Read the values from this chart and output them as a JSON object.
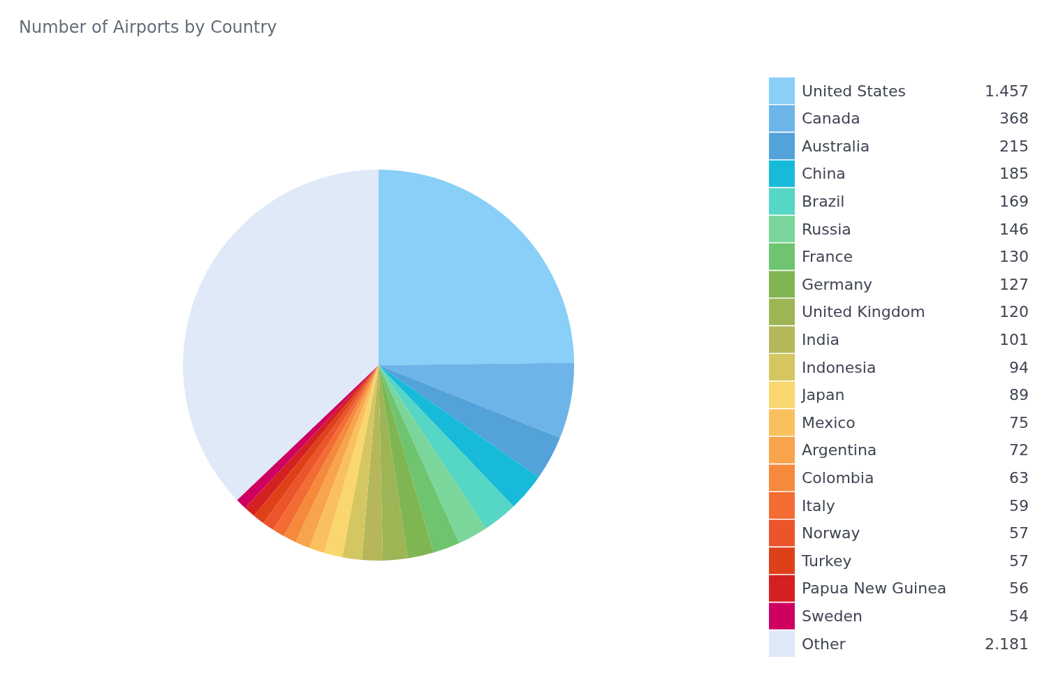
{
  "chart_data": {
    "type": "pie",
    "title": "Number of Airports by Country",
    "categories": [
      "United States",
      "Canada",
      "Australia",
      "China",
      "Brazil",
      "Russia",
      "France",
      "Germany",
      "United Kingdom",
      "India",
      "Indonesia",
      "Japan",
      "Mexico",
      "Argentina",
      "Colombia",
      "Italy",
      "Norway",
      "Turkey",
      "Papua New Guinea",
      "Sweden",
      "Other"
    ],
    "values": [
      1457,
      368,
      215,
      185,
      169,
      146,
      130,
      127,
      120,
      101,
      94,
      89,
      75,
      72,
      63,
      59,
      57,
      57,
      56,
      54,
      2181
    ],
    "value_labels": [
      "1.457",
      "368",
      "215",
      "185",
      "169",
      "146",
      "130",
      "127",
      "120",
      "101",
      "94",
      "89",
      "75",
      "72",
      "63",
      "59",
      "57",
      "57",
      "56",
      "54",
      "2.181"
    ],
    "colors": [
      "#89cff8",
      "#6db5e8",
      "#53a2d9",
      "#17bbd9",
      "#56d6c4",
      "#7ad69a",
      "#6ec46f",
      "#80b651",
      "#9db555",
      "#b6b75a",
      "#d4c762",
      "#f9d66e",
      "#fbc05e",
      "#f8a44d",
      "#f58a3c",
      "#f26c34",
      "#ec542b",
      "#de4119",
      "#d42020",
      "#cf0060",
      "#dfe9f8"
    ],
    "legend": "right"
  }
}
